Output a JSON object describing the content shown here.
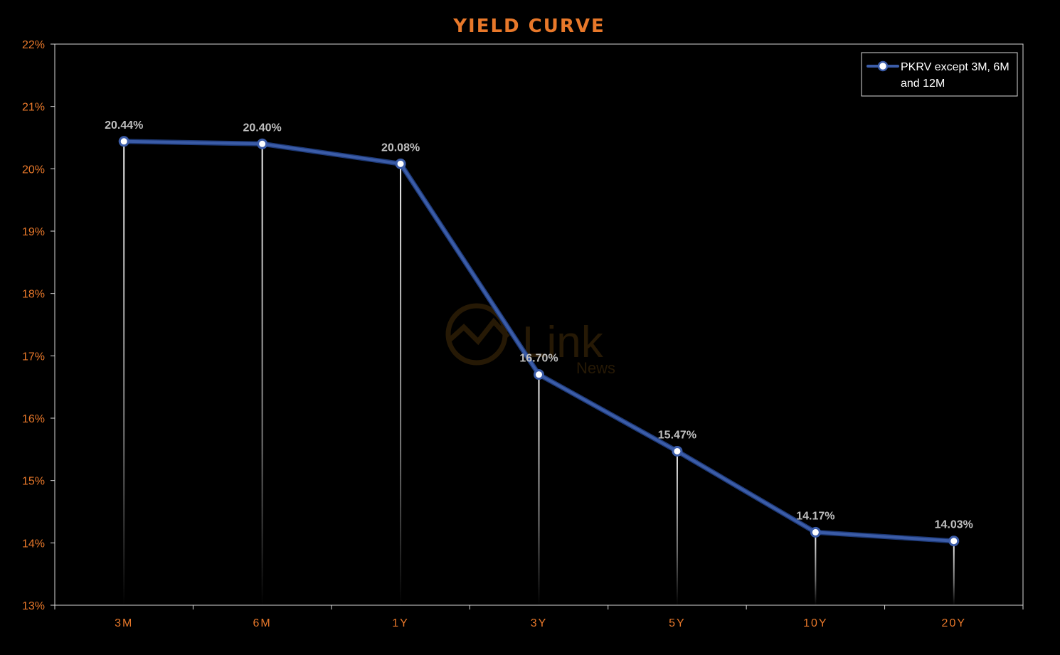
{
  "chart_data": {
    "type": "line",
    "title": "YIELD CURVE",
    "xlabel": "",
    "ylabel": "",
    "categories": [
      "3M",
      "6M",
      "1Y",
      "3Y",
      "5Y",
      "10Y",
      "20Y"
    ],
    "series": [
      {
        "name": "PKRV except 3M, 6M and 12M",
        "legend_lines": [
          "PKRV except 3M, 6M",
          "and 12M"
        ],
        "values": [
          20.44,
          20.4,
          20.08,
          16.7,
          15.47,
          14.17,
          14.03
        ],
        "data_labels": [
          "20.44%",
          "20.40%",
          "20.08%",
          "16.70%",
          "15.47%",
          "14.17%",
          "14.03%"
        ],
        "color": "#3b5ca8"
      }
    ],
    "ylim": [
      13,
      22
    ],
    "yticks": [
      13,
      14,
      15,
      16,
      17,
      18,
      19,
      20,
      21,
      22
    ],
    "ytick_labels": [
      "13%",
      "14%",
      "15%",
      "16%",
      "17%",
      "18%",
      "19%",
      "20%",
      "21%",
      "22%"
    ],
    "grid": false,
    "drop_lines": true,
    "legend_position": "top-right",
    "colors": {
      "background": "#000000",
      "title": "#e8782a",
      "axis_text": "#e8782a",
      "axis_line": "#d9d9d9",
      "data_label": "#bfbfbf",
      "legend_text": "#ffffff",
      "drop_line": "#ffffff",
      "marker_fill": "#ffffff"
    }
  },
  "watermark": {
    "word": "Link",
    "sub": "News"
  }
}
